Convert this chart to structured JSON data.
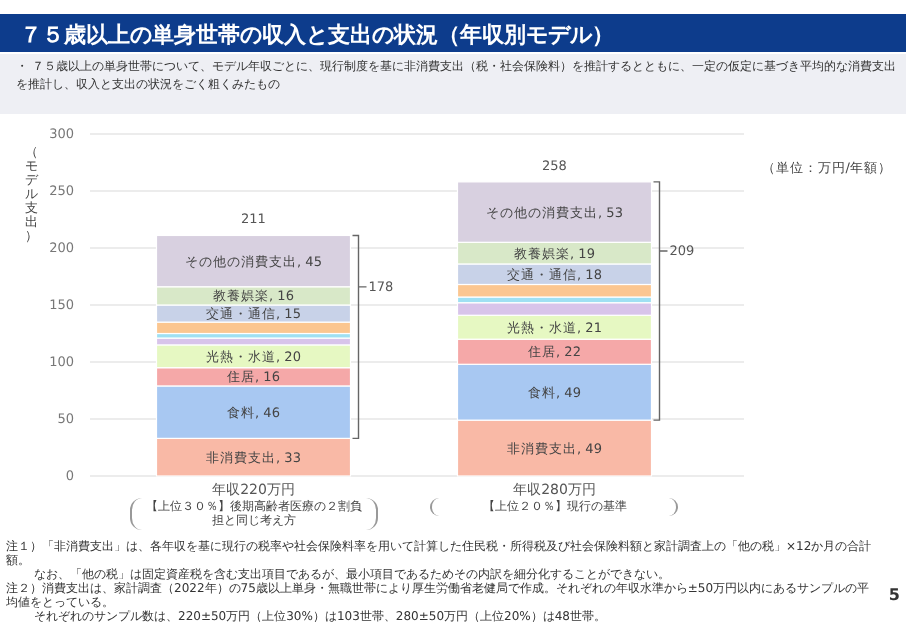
{
  "chart_data": {
    "type": "bar",
    "stacked": true,
    "title": "７５歳以上の単身世帯の収入と支出の状況（年収別モデル）",
    "subtitle": "・ ７５歳以上の単身世帯について、モデル年収ごとに、現行制度を基に非消費支出（税・社会保険料）を推計するとともに、一定の仮定に基づき平均的な消費支出を推計し、収入と支出の状況をごく粗くみたもの",
    "ylabel": "（モデル支出）",
    "categories": [
      "年収220万円",
      "年収280万円"
    ],
    "series": [
      {
        "color": "#f9b9a6",
        "values": [
          33,
          49
        ],
        "value_labels": [
          "非消費支出, 33",
          "非消費支出, 49"
        ]
      },
      {
        "color": "#a8c8f2",
        "values": [
          46,
          49
        ],
        "value_labels": [
          "食料, 46",
          "食料, 49"
        ]
      },
      {
        "color": "#f5a8a8",
        "values": [
          16,
          22
        ],
        "value_labels": [
          "住居, 16",
          "住居, 22"
        ]
      },
      {
        "color": "#e6f8c2",
        "values": [
          20,
          21
        ],
        "value_labels": [
          "光熱・水道, 20",
          "光熱・水道, 21"
        ]
      },
      {
        "color": "#d8c4ea",
        "values": [
          6,
          11
        ]
      },
      {
        "color": "#9fe0f2",
        "values": [
          4,
          5
        ]
      },
      {
        "color": "#fbc690",
        "values": [
          10,
          11
        ]
      },
      {
        "color": "#c8d2e8",
        "values": [
          15,
          18
        ],
        "value_labels": [
          "交通・通信, 15",
          "交通・通信, 18"
        ]
      },
      {
        "color": "#d8e8c8",
        "values": [
          16,
          19
        ],
        "value_labels": [
          "教養娯楽, 16",
          "教養娯楽, 19"
        ]
      },
      {
        "color": "#d8d0e0",
        "values": [
          45,
          53
        ],
        "value_labels": [
          "その他の消費支出, 45",
          "その他の消費支出, 53"
        ]
      }
    ],
    "totals": [
      "211",
      "258"
    ],
    "ylim": [
      0,
      300
    ],
    "yticks": [
      0,
      50,
      100,
      150,
      200,
      250,
      300
    ],
    "grid": "y",
    "annotations": [
      "178",
      "209",
      "（単位：万円/年額）",
      "【上位３０％】後期高齢者医療の２割負担と同じ考え方",
      "【上位２０％】現行の基準",
      "注１）「非消費支出」は、各年収を基に現行の税率や社会保険料率を用いて計算した住民税・所得税及び社会保険料額と家計調査上の「他の税」×12か月の合計額。",
      "なお、「他の税」は固定資産税を含む支出項目であるが、最小項目であるためその内訳を細分化することができない。",
      "注２）消費支出は、家計調査（2022年）の75歳以上単身・無職世帯により厚生労働省老健局で作成。それぞれの年収水準から±50万円以内にあるサンプルの平均値をとっている。",
      "それぞれのサンプル数は、220±50万円（上位30%）は103世帯、280±50万円（上位20%）は48世帯。",
      "5"
    ]
  }
}
